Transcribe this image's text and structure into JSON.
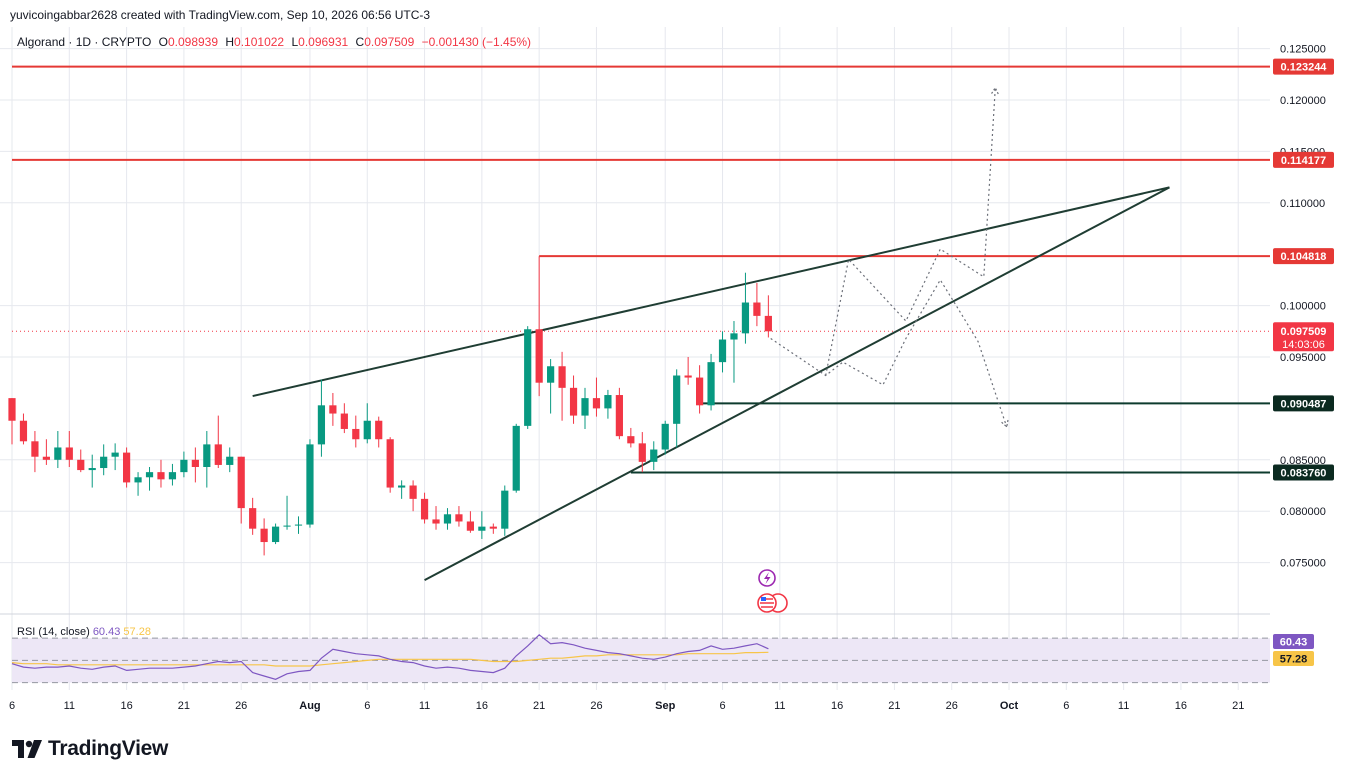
{
  "header": {
    "attribution": "yuvicoingabbar2628 created with TradingView.com, Sep 10, 2026 06:56 UTC-3"
  },
  "legend": {
    "symbol": "Algorand · 1D · CRYPTO",
    "open_label": "O",
    "open": "0.098939",
    "high_label": "H",
    "high": "0.101022",
    "low_label": "L",
    "low": "0.096931",
    "close_label": "C",
    "close": "0.097509",
    "change": "−0.001430 (−1.45%)"
  },
  "rsi_legend": {
    "label": "RSI (14, close)",
    "rsi_value": "60.43",
    "ma_value": "57.28"
  },
  "footer": {
    "brand": "TradingView"
  },
  "colors": {
    "up": "#089981",
    "down": "#f23645",
    "resistance": "#e53935",
    "support": "#0d3b2e",
    "trendline": "#1f3d33",
    "rsi_line": "#7e57c2",
    "rsi_ma": "#f7c548",
    "rsi_band": "#ede7f6",
    "grid": "#e6e8ee"
  },
  "chart_data": {
    "type": "candlestick",
    "price_axis": {
      "ylim": [
        0.0712,
        0.1275
      ],
      "ticks": [
        "0.125000",
        "0.120000",
        "0.115000",
        "0.110000",
        "0.100000",
        "0.095000",
        "0.085000",
        "0.080000",
        "0.075000"
      ],
      "tick_values": [
        0.125,
        0.12,
        0.115,
        0.11,
        0.1,
        0.095,
        0.085,
        0.08,
        0.075
      ]
    },
    "x_axis": {
      "ticks": [
        {
          "label": "6",
          "day": 0
        },
        {
          "label": "11",
          "day": 5
        },
        {
          "label": "16",
          "day": 10
        },
        {
          "label": "21",
          "day": 15
        },
        {
          "label": "26",
          "day": 20
        },
        {
          "label": "Aug",
          "day": 26,
          "bold": true
        },
        {
          "label": "6",
          "day": 31
        },
        {
          "label": "11",
          "day": 36
        },
        {
          "label": "16",
          "day": 41
        },
        {
          "label": "21",
          "day": 46
        },
        {
          "label": "26",
          "day": 51
        },
        {
          "label": "Sep",
          "day": 57,
          "bold": true
        },
        {
          "label": "6",
          "day": 62
        },
        {
          "label": "11",
          "day": 67
        },
        {
          "label": "16",
          "day": 72
        },
        {
          "label": "21",
          "day": 77
        },
        {
          "label": "26",
          "day": 82
        },
        {
          "label": "Oct",
          "day": 87,
          "bold": true
        },
        {
          "label": "6",
          "day": 92
        },
        {
          "label": "11",
          "day": 97
        },
        {
          "label": "16",
          "day": 102
        },
        {
          "label": "21",
          "day": 107
        }
      ]
    },
    "candles": [
      {
        "d": 0,
        "o": 0.091,
        "h": 0.091,
        "l": 0.0865,
        "c": 0.0888
      },
      {
        "d": 1,
        "o": 0.0888,
        "h": 0.0895,
        "l": 0.0865,
        "c": 0.0868
      },
      {
        "d": 2,
        "o": 0.0868,
        "h": 0.0878,
        "l": 0.0838,
        "c": 0.0853
      },
      {
        "d": 3,
        "o": 0.0853,
        "h": 0.087,
        "l": 0.0845,
        "c": 0.085
      },
      {
        "d": 4,
        "o": 0.085,
        "h": 0.0878,
        "l": 0.0842,
        "c": 0.0862
      },
      {
        "d": 5,
        "o": 0.0862,
        "h": 0.0878,
        "l": 0.0843,
        "c": 0.085
      },
      {
        "d": 6,
        "o": 0.085,
        "h": 0.086,
        "l": 0.0838,
        "c": 0.084
      },
      {
        "d": 7,
        "o": 0.084,
        "h": 0.0855,
        "l": 0.0823,
        "c": 0.0842
      },
      {
        "d": 8,
        "o": 0.0842,
        "h": 0.0865,
        "l": 0.0835,
        "c": 0.0853
      },
      {
        "d": 9,
        "o": 0.0853,
        "h": 0.0866,
        "l": 0.084,
        "c": 0.0857
      },
      {
        "d": 10,
        "o": 0.0857,
        "h": 0.0862,
        "l": 0.0823,
        "c": 0.0828
      },
      {
        "d": 11,
        "o": 0.0828,
        "h": 0.0838,
        "l": 0.0815,
        "c": 0.0833
      },
      {
        "d": 12,
        "o": 0.0833,
        "h": 0.0843,
        "l": 0.082,
        "c": 0.0838
      },
      {
        "d": 13,
        "o": 0.0838,
        "h": 0.085,
        "l": 0.0823,
        "c": 0.0831
      },
      {
        "d": 14,
        "o": 0.0831,
        "h": 0.0846,
        "l": 0.0825,
        "c": 0.0838
      },
      {
        "d": 15,
        "o": 0.0838,
        "h": 0.0858,
        "l": 0.0833,
        "c": 0.085
      },
      {
        "d": 16,
        "o": 0.085,
        "h": 0.0862,
        "l": 0.0828,
        "c": 0.0843
      },
      {
        "d": 17,
        "o": 0.0843,
        "h": 0.0878,
        "l": 0.0823,
        "c": 0.0865
      },
      {
        "d": 18,
        "o": 0.0865,
        "h": 0.0893,
        "l": 0.0842,
        "c": 0.0845
      },
      {
        "d": 19,
        "o": 0.0845,
        "h": 0.0862,
        "l": 0.0838,
        "c": 0.0853
      },
      {
        "d": 20,
        "o": 0.0853,
        "h": 0.0853,
        "l": 0.0788,
        "c": 0.0803
      },
      {
        "d": 21,
        "o": 0.0803,
        "h": 0.0813,
        "l": 0.0777,
        "c": 0.0783
      },
      {
        "d": 22,
        "o": 0.0783,
        "h": 0.0793,
        "l": 0.0757,
        "c": 0.077
      },
      {
        "d": 23,
        "o": 0.077,
        "h": 0.0788,
        "l": 0.0768,
        "c": 0.0785
      },
      {
        "d": 24,
        "o": 0.0785,
        "h": 0.0815,
        "l": 0.0782,
        "c": 0.0786
      },
      {
        "d": 25,
        "o": 0.0786,
        "h": 0.0795,
        "l": 0.0778,
        "c": 0.0787
      },
      {
        "d": 26,
        "o": 0.0787,
        "h": 0.087,
        "l": 0.0784,
        "c": 0.0865
      },
      {
        "d": 27,
        "o": 0.0865,
        "h": 0.0928,
        "l": 0.0853,
        "c": 0.0903
      },
      {
        "d": 28,
        "o": 0.0903,
        "h": 0.0915,
        "l": 0.0883,
        "c": 0.0895
      },
      {
        "d": 29,
        "o": 0.0895,
        "h": 0.0905,
        "l": 0.0876,
        "c": 0.088
      },
      {
        "d": 30,
        "o": 0.088,
        "h": 0.0893,
        "l": 0.0862,
        "c": 0.087
      },
      {
        "d": 31,
        "o": 0.087,
        "h": 0.0905,
        "l": 0.0866,
        "c": 0.0888
      },
      {
        "d": 32,
        "o": 0.0888,
        "h": 0.0892,
        "l": 0.0862,
        "c": 0.087
      },
      {
        "d": 33,
        "o": 0.087,
        "h": 0.0872,
        "l": 0.0818,
        "c": 0.0823
      },
      {
        "d": 34,
        "o": 0.0823,
        "h": 0.083,
        "l": 0.0812,
        "c": 0.0825
      },
      {
        "d": 35,
        "o": 0.0825,
        "h": 0.083,
        "l": 0.08,
        "c": 0.0812
      },
      {
        "d": 36,
        "o": 0.0812,
        "h": 0.0818,
        "l": 0.0788,
        "c": 0.0792
      },
      {
        "d": 37,
        "o": 0.0792,
        "h": 0.0805,
        "l": 0.0782,
        "c": 0.0788
      },
      {
        "d": 38,
        "o": 0.0788,
        "h": 0.0803,
        "l": 0.0782,
        "c": 0.0797
      },
      {
        "d": 39,
        "o": 0.0797,
        "h": 0.0805,
        "l": 0.0785,
        "c": 0.079
      },
      {
        "d": 40,
        "o": 0.079,
        "h": 0.08,
        "l": 0.0779,
        "c": 0.0781
      },
      {
        "d": 41,
        "o": 0.0781,
        "h": 0.08,
        "l": 0.0773,
        "c": 0.0785
      },
      {
        "d": 42,
        "o": 0.0785,
        "h": 0.0788,
        "l": 0.0778,
        "c": 0.0783
      },
      {
        "d": 43,
        "o": 0.0783,
        "h": 0.0825,
        "l": 0.0776,
        "c": 0.082
      },
      {
        "d": 44,
        "o": 0.082,
        "h": 0.0885,
        "l": 0.0818,
        "c": 0.0883
      },
      {
        "d": 45,
        "o": 0.0883,
        "h": 0.098,
        "l": 0.088,
        "c": 0.0977
      },
      {
        "d": 46,
        "o": 0.0977,
        "h": 0.1048,
        "l": 0.0912,
        "c": 0.0925
      },
      {
        "d": 47,
        "o": 0.0925,
        "h": 0.0948,
        "l": 0.0895,
        "c": 0.0941
      },
      {
        "d": 48,
        "o": 0.0941,
        "h": 0.0955,
        "l": 0.0888,
        "c": 0.092
      },
      {
        "d": 49,
        "o": 0.092,
        "h": 0.0932,
        "l": 0.0885,
        "c": 0.0893
      },
      {
        "d": 50,
        "o": 0.0893,
        "h": 0.092,
        "l": 0.088,
        "c": 0.091
      },
      {
        "d": 51,
        "o": 0.091,
        "h": 0.093,
        "l": 0.0892,
        "c": 0.09
      },
      {
        "d": 52,
        "o": 0.09,
        "h": 0.0918,
        "l": 0.089,
        "c": 0.0913
      },
      {
        "d": 53,
        "o": 0.0913,
        "h": 0.092,
        "l": 0.087,
        "c": 0.0873
      },
      {
        "d": 54,
        "o": 0.0873,
        "h": 0.0881,
        "l": 0.0862,
        "c": 0.0866
      },
      {
        "d": 55,
        "o": 0.0866,
        "h": 0.0877,
        "l": 0.0838,
        "c": 0.0848
      },
      {
        "d": 56,
        "o": 0.0848,
        "h": 0.0868,
        "l": 0.084,
        "c": 0.086
      },
      {
        "d": 57,
        "o": 0.086,
        "h": 0.0888,
        "l": 0.0855,
        "c": 0.0885
      },
      {
        "d": 58,
        "o": 0.0885,
        "h": 0.0938,
        "l": 0.0862,
        "c": 0.0932
      },
      {
        "d": 59,
        "o": 0.0932,
        "h": 0.095,
        "l": 0.0923,
        "c": 0.093
      },
      {
        "d": 60,
        "o": 0.093,
        "h": 0.0942,
        "l": 0.0895,
        "c": 0.0903
      },
      {
        "d": 61,
        "o": 0.0903,
        "h": 0.0953,
        "l": 0.0898,
        "c": 0.0945
      },
      {
        "d": 62,
        "o": 0.0945,
        "h": 0.0975,
        "l": 0.0935,
        "c": 0.0967
      },
      {
        "d": 63,
        "o": 0.0967,
        "h": 0.0985,
        "l": 0.0925,
        "c": 0.0973
      },
      {
        "d": 64,
        "o": 0.0973,
        "h": 0.1032,
        "l": 0.0963,
        "c": 0.1003
      },
      {
        "d": 65,
        "o": 0.1003,
        "h": 0.1022,
        "l": 0.098,
        "c": 0.099
      },
      {
        "d": 66,
        "o": 0.099,
        "h": 0.101,
        "l": 0.0969,
        "c": 0.0975
      }
    ],
    "horizontal_levels": [
      {
        "price": 0.123244,
        "label": "0.123244",
        "kind": "resistance"
      },
      {
        "price": 0.114177,
        "label": "0.114177",
        "kind": "resistance"
      },
      {
        "price": 0.104818,
        "label": "0.104818",
        "kind": "resistance",
        "from_day": 46
      },
      {
        "price": 0.090487,
        "label": "0.090487",
        "kind": "support",
        "from_day": 60
      },
      {
        "price": 0.08376,
        "label": "0.083760",
        "kind": "support",
        "from_day": 54
      }
    ],
    "current_price": {
      "label": "0.097509",
      "countdown": "14:03:06",
      "price": 0.097509
    },
    "trendlines": [
      {
        "from": {
          "day": 21,
          "price": 0.0912
        },
        "to": {
          "day": 101,
          "price": 0.1115
        }
      },
      {
        "from": {
          "day": 36,
          "price": 0.0733
        },
        "to": {
          "day": 101,
          "price": 0.1115
        }
      }
    ],
    "projections": [
      [
        {
          "day": 66.2,
          "price": 0.0968
        },
        {
          "day": 71,
          "price": 0.0932
        },
        {
          "day": 72.5,
          "price": 0.0945
        },
        {
          "day": 76,
          "price": 0.0923
        },
        {
          "day": 78,
          "price": 0.0968
        },
        {
          "day": 81,
          "price": 0.1025
        },
        {
          "day": 82.5,
          "price": 0.0998
        },
        {
          "day": 84.3,
          "price": 0.0965
        },
        {
          "day": 86.8,
          "price": 0.0882
        }
      ],
      [
        {
          "day": 71,
          "price": 0.0932
        },
        {
          "day": 73,
          "price": 0.1045
        },
        {
          "day": 78,
          "price": 0.0985
        },
        {
          "day": 81,
          "price": 0.1055
        },
        {
          "day": 84.8,
          "price": 0.1028
        },
        {
          "day": 85.8,
          "price": 0.1212
        }
      ]
    ],
    "rsi": {
      "ylim": [
        27,
        80
      ],
      "upper_band": 70,
      "mid": 50,
      "lower_band": 30,
      "rsi_values": [
        47,
        44,
        43,
        44,
        44,
        45,
        43,
        42,
        44,
        45,
        41,
        42,
        43,
        43,
        43,
        44,
        45,
        47,
        49,
        48,
        49,
        39,
        36,
        33,
        38,
        40,
        41,
        52,
        60,
        58,
        56,
        55,
        54,
        51,
        49,
        48,
        45,
        43,
        44,
        43,
        41,
        40,
        39,
        43,
        54,
        63,
        73,
        65,
        66,
        64,
        61,
        59,
        57,
        56,
        54,
        52,
        51,
        53,
        56,
        58,
        59,
        63,
        60,
        61,
        63,
        65,
        60.43
      ],
      "ma_values": [
        48,
        47,
        47,
        47,
        46,
        46,
        46,
        46,
        46,
        46,
        46,
        46,
        46,
        46,
        46,
        46,
        46,
        46,
        46,
        46,
        46,
        46,
        46,
        45,
        45,
        45,
        45,
        46,
        47,
        48,
        49,
        50,
        51,
        51,
        51,
        51,
        51,
        51,
        51,
        51,
        51,
        50,
        49,
        49,
        49,
        50,
        51,
        52,
        52,
        53,
        54,
        54,
        55,
        55,
        55,
        55,
        55,
        55,
        55,
        56,
        56,
        56,
        56,
        56,
        57,
        57,
        57.28
      ]
    }
  }
}
